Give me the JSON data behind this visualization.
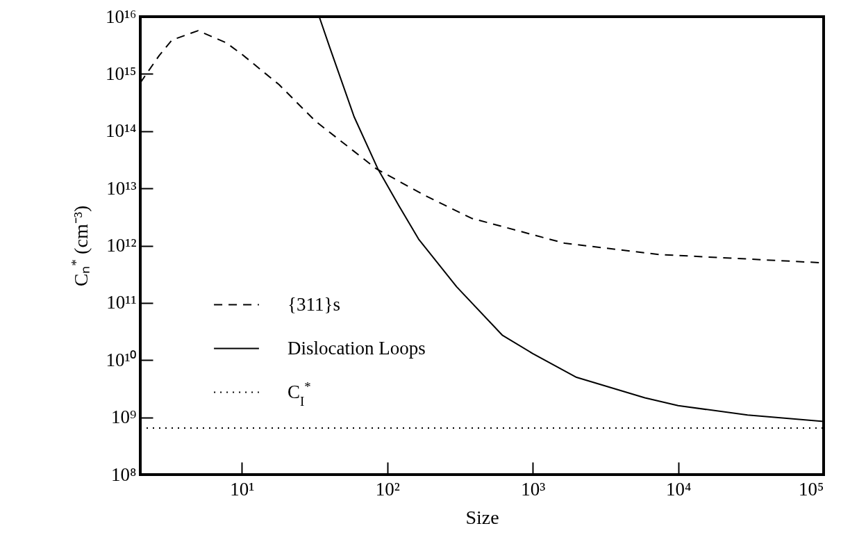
{
  "chart_data": {
    "type": "line",
    "xlabel": "Size",
    "ylabel": "Cₙ$^{*}$ (cm⁻³)",
    "log": "xy",
    "legend": "bottom left",
    "xlim": [
      2,
      100000
    ],
    "ylim": [
      100000000,
      10000000000000000
    ],
    "xticks": [
      {
        "value": 10,
        "label": "10¹"
      },
      {
        "value": 100,
        "label": "10²"
      },
      {
        "value": 1000,
        "label": "10³"
      },
      {
        "value": 10000,
        "label": "10⁴"
      },
      {
        "value": 100000,
        "label": "10⁵"
      }
    ],
    "yticks": [
      {
        "value": 100000000,
        "label": "10⁸"
      },
      {
        "value": 1000000000,
        "label": "10⁹"
      },
      {
        "value": 10000000000,
        "label": "10¹⁰"
      },
      {
        "value": 100000000000,
        "label": "10¹¹"
      },
      {
        "value": 1000000000000,
        "label": "10¹²"
      },
      {
        "value": 10000000000000,
        "label": "10¹³"
      },
      {
        "value": 100000000000000,
        "label": "10¹⁴"
      },
      {
        "value": 1000000000000000,
        "label": "10¹⁵"
      },
      {
        "value": 10000000000000000,
        "label": "10¹⁶"
      }
    ],
    "series": [
      {
        "name": "{311}s",
        "color": "#000000",
        "line_style": "dashed",
        "x": [
          2,
          2.7,
          3.3,
          5,
          7.8,
          10,
          18,
          32,
          84,
          180,
          380,
          1660,
          7400,
          100000
        ],
        "values": [
          700000000000000,
          2100000000000000,
          3900000000000000,
          5700000000000000,
          3500000000000000,
          2200000000000000,
          650000000000000,
          150000000000000,
          22000000000000,
          7600000000000,
          3000000000000,
          1100000000000,
          700000000000,
          500000000000
        ]
      },
      {
        "name": "Dislocation Loops",
        "color": "#000000",
        "line_style": "solid",
        "x": [
          34,
          40,
          59,
          86,
          120,
          164,
          300,
          620,
          1000,
          2000,
          5900,
          10000,
          30000,
          100000
        ],
        "values": [
          10000000000000000,
          3000000000000000,
          180000000000000,
          22000000000000,
          5000000000000,
          1300000000000,
          190000000000,
          27000000000,
          13000000000,
          5000000000,
          2200000000,
          1600000000,
          1100000000,
          850000000
        ]
      },
      {
        "name": "C$_{I}$$^{*}$",
        "color": "#000000",
        "line_style": "dotted",
        "x": [
          2,
          100000
        ],
        "values": [
          650000000,
          650000000
        ]
      }
    ]
  }
}
